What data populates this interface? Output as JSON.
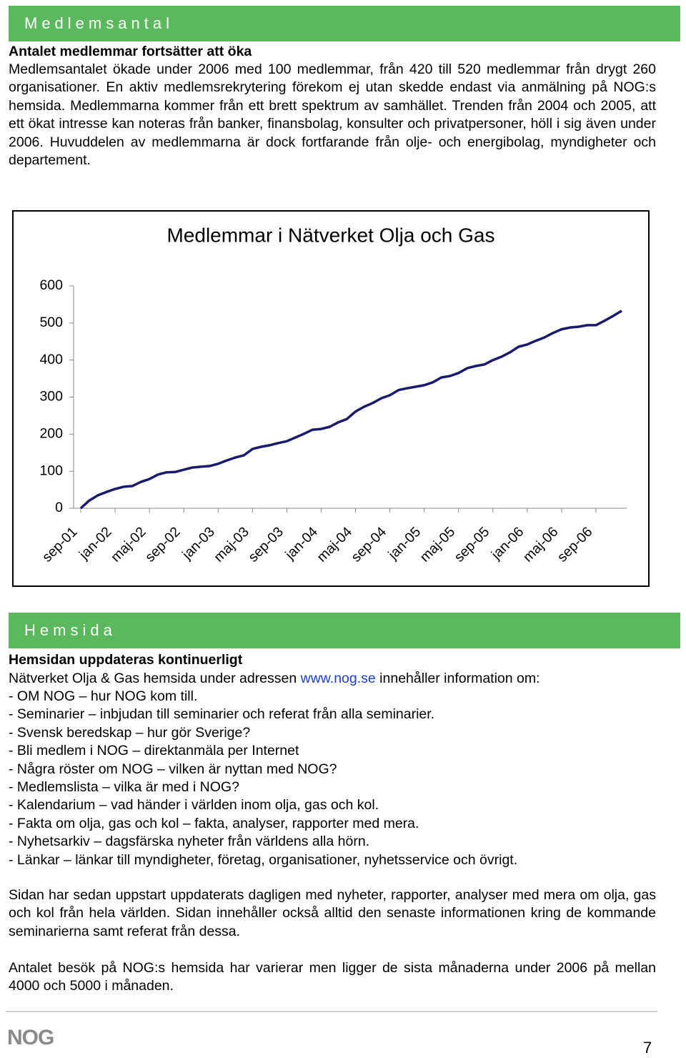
{
  "section1": {
    "band": "Medlemsantal",
    "heading": "Antalet medlemmar fortsätter att öka",
    "paragraph": "Medlemsantalet ökade under 2006 med 100 medlemmar, från 420 till 520 medlemmar från drygt 260 organisationer. En aktiv medlemsrekrytering förekom ej utan skedde endast via anmälning på NOG:s hemsida. Medlemmarna kommer från ett brett spektrum av samhället. Trenden från 2004 och 2005, att ett ökat intresse kan noteras från banker, finansbolag, konsulter och privatpersoner, höll i sig även under 2006. Huvuddelen av medlemmarna är dock fortfarande från olje- och energibolag, myndigheter och departement."
  },
  "chart_data": {
    "type": "line",
    "title": "Medlemmar i Nätverket Olja och Gas",
    "categories": [
      "sep-01",
      null,
      null,
      null,
      "jan-02",
      null,
      null,
      null,
      "maj-02",
      null,
      null,
      null,
      "sep-02",
      null,
      null,
      null,
      "jan-03",
      null,
      null,
      null,
      "maj-03",
      null,
      null,
      null,
      "sep-03",
      null,
      null,
      null,
      "jan-04",
      null,
      null,
      null,
      "maj-04",
      null,
      null,
      null,
      "sep-04",
      null,
      null,
      null,
      "jan-05",
      null,
      null,
      null,
      "maj-05",
      null,
      null,
      null,
      "sep-05",
      null,
      null,
      null,
      "jan-06",
      null,
      null,
      null,
      "maj-06",
      null,
      null,
      null,
      "sep-06",
      null,
      null,
      null
    ],
    "values": [
      0,
      21,
      35,
      44,
      52,
      58,
      60,
      71,
      79,
      91,
      97,
      98,
      104,
      110,
      112,
      114,
      120,
      129,
      137,
      143,
      160,
      166,
      170,
      176,
      181,
      191,
      201,
      212,
      214,
      220,
      232,
      241,
      261,
      274,
      284,
      297,
      305,
      319,
      324,
      328,
      332,
      340,
      353,
      357,
      365,
      378,
      384,
      388,
      400,
      409,
      421,
      436,
      442,
      452,
      461,
      473,
      483,
      488,
      490,
      494,
      494,
      506,
      519,
      533
    ],
    "color": "#1b1b6b",
    "ylim": [
      0,
      600
    ],
    "yticks": [
      0,
      100,
      200,
      300,
      400,
      500,
      600
    ]
  },
  "section2": {
    "band": "Hemsida",
    "heading": "Hemsidan uppdateras kontinuerligt",
    "intro": [
      "Nätverket Olja & Gas hemsida under adressen ",
      "www.nog.se",
      " innehåller information om:"
    ],
    "items": [
      "- OM NOG – hur NOG kom till.",
      "- Seminarier – inbjudan till seminarier och referat från alla seminarier.",
      "- Svensk beredskap – hur gör Sverige?",
      "- Bli medlem i NOG – direktanmäla per Internet",
      "- Några röster om NOG – vilken är nyttan med NOG?",
      "- Medlemslista – vilka är med i NOG?",
      "- Kalendarium – vad händer i världen inom olja, gas och kol.",
      "- Fakta om olja, gas och kol – fakta, analyser, rapporter med mera.",
      "- Nyhetsarkiv – dagsfärska nyheter från världens alla hörn.",
      "- Länkar – länkar till myndigheter, företag, organisationer, nyhetsservice och övrigt."
    ],
    "paragraph1": "Sidan har sedan uppstart uppdaterats dagligen med nyheter, rapporter, analyser med mera om olja, gas och kol från hela världen. Sidan innehåller också alltid den senaste informationen kring de kommande seminarierna samt referat från dessa.",
    "paragraph2": "Antalet besök på NOG:s hemsida har varierar men ligger de sista månaderna under 2006 på mellan 4000 och 5000 i månaden."
  },
  "footer": {
    "logo": "NOG",
    "page": "7"
  }
}
